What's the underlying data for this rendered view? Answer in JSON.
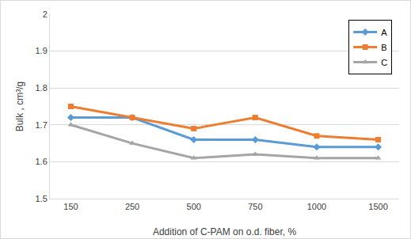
{
  "chart_data": {
    "type": "line",
    "x_label": "Addition of C-PAM on o.d. fiber, %",
    "y_label": "Bulk , cm³/g",
    "categories": [
      "150",
      "250",
      "500",
      "750",
      "1000",
      "1500"
    ],
    "series": [
      {
        "name": "A",
        "color": "#5b9bd5",
        "marker": "diamond",
        "values": [
          1.72,
          1.72,
          1.66,
          1.66,
          1.64,
          1.64
        ]
      },
      {
        "name": "B",
        "color": "#ed7d31",
        "marker": "square",
        "values": [
          1.75,
          1.72,
          1.69,
          1.72,
          1.67,
          1.66
        ]
      },
      {
        "name": "C",
        "color": "#a5a5a5",
        "marker": "triangle-up",
        "values": [
          1.7,
          1.65,
          1.61,
          1.62,
          1.61,
          1.61
        ]
      }
    ],
    "ylim": [
      1.5,
      2
    ],
    "yticks": [
      1.5,
      1.6,
      1.7,
      1.8,
      1.9,
      2
    ],
    "grid": true,
    "legend": "top right"
  }
}
